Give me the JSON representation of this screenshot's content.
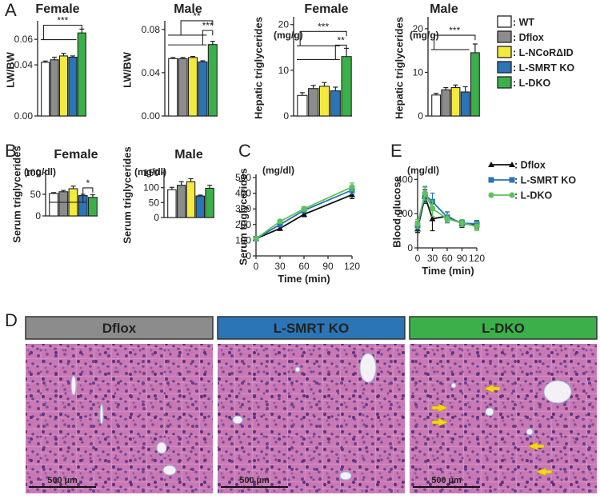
{
  "panel_labels": [
    "A",
    "B",
    "C",
    "D",
    "E"
  ],
  "legend_bars": [
    {
      "label": ": WT",
      "color": "#ffffff"
    },
    {
      "label": ": Dflox",
      "color": "#8c8c8c"
    },
    {
      "label": ": L-NCoRΔID",
      "color": "#f2ea3f"
    },
    {
      "label": ": L-SMRT KO",
      "color": "#2b74b6"
    },
    {
      "label": ": L-DKO",
      "color": "#3bb04a"
    }
  ],
  "chart_data": [
    {
      "type": "bar",
      "title": "Female",
      "y_label": "LW/BW",
      "values": [
        0.042,
        0.044,
        0.047,
        0.046,
        0.065
      ],
      "errors": [
        0.001,
        0.002,
        0.002,
        0.001,
        0.003
      ],
      "ylim": [
        0,
        0.072
      ],
      "yticks": [
        {
          "value": 0,
          "label": "0.00"
        },
        0.04,
        0.06
      ],
      "annotations": [
        "***"
      ]
    },
    {
      "type": "bar",
      "title": "Male",
      "y_label": "LW/BW",
      "values": [
        0.053,
        0.053,
        0.054,
        0.05,
        0.066
      ],
      "errors": [
        0.001,
        0.001,
        0.001,
        0.001,
        0.003
      ],
      "ylim": [
        0,
        0.085
      ],
      "yticks": [
        {
          "value": 0,
          "label": "0.00"
        },
        0.04,
        0.08
      ],
      "annotations": [
        "**",
        "***"
      ]
    },
    {
      "type": "bar",
      "title": "Female",
      "y_label": "Hepatic triglycerides",
      "unit": "(mg/g)",
      "values": [
        4.5,
        6,
        6.5,
        5.5,
        13
      ],
      "errors": [
        0.6,
        0.7,
        0.8,
        0.8,
        1.8
      ],
      "ylim": [
        0,
        21
      ],
      "yticks": [
        0,
        10,
        20
      ],
      "annotations": [
        "***",
        "**"
      ]
    },
    {
      "type": "bar",
      "title": "Male",
      "y_label": "Hepatic triglycerides",
      "unit": "(mg/g)",
      "values": [
        4.8,
        6,
        6.5,
        5.5,
        14.5
      ],
      "errors": [
        0.4,
        0.5,
        0.6,
        1.2,
        2
      ],
      "ylim": [
        0,
        22
      ],
      "yticks": [
        0,
        10,
        20
      ],
      "annotations": [
        "***"
      ]
    },
    {
      "type": "bar",
      "title": "Female",
      "y_label": "Serum triglycerides",
      "unit": "(mg/dl)",
      "values": [
        52,
        56,
        63,
        47,
        43
      ],
      "errors": [
        2,
        3,
        6,
        3,
        6
      ],
      "ylim": [
        0,
        100
      ],
      "yticks": [
        0,
        50,
        100
      ],
      "annotations": [
        "*"
      ]
    },
    {
      "type": "bar",
      "title": "Male",
      "y_label": "Serum triglycerides",
      "unit": "(mg/dl)",
      "values": [
        93,
        108,
        120,
        72,
        98
      ],
      "errors": [
        8,
        12,
        10,
        3,
        10
      ],
      "ylim": [
        0,
        150
      ],
      "yticks": [
        0,
        50,
        100,
        150
      ],
      "annotations": []
    },
    {
      "type": "line",
      "y_label": "Serum triglycerides",
      "unit": "(mg/dl)",
      "x_label": "Time (min)",
      "x": [
        0,
        30,
        60,
        120
      ],
      "xlim": [
        0,
        120
      ],
      "xticks": [
        0,
        30,
        60,
        90,
        120
      ],
      "ylim": [
        0,
        500
      ],
      "yticks": [
        0,
        100,
        200,
        300,
        400,
        500
      ],
      "series": [
        {
          "color": "#111111",
          "marker": "triangle",
          "values": [
            110,
            175,
            265,
            390
          ],
          "errors": [
            5,
            12,
            15,
            25
          ]
        },
        {
          "color": "#2b74b6",
          "marker": "square",
          "values": [
            110,
            200,
            290,
            420
          ],
          "errors": [
            5,
            10,
            15,
            25
          ]
        },
        {
          "color": "#5cc35a",
          "marker": "circle",
          "values": [
            110,
            220,
            300,
            440
          ],
          "errors": [
            5,
            12,
            15,
            25
          ]
        }
      ]
    },
    {
      "type": "line",
      "y_label": "Blood  glucose",
      "unit": "(mg/dl)",
      "x_label": "Time (min)",
      "x": [
        0,
        15,
        30,
        60,
        90,
        120
      ],
      "xlim": [
        0,
        120
      ],
      "xticks": [
        0,
        30,
        60,
        90,
        120
      ],
      "ylim": [
        0,
        420
      ],
      "yticks": [
        0,
        200,
        400
      ],
      "series": [
        {
          "name": ": Dflox",
          "color": "#111111",
          "marker": "triangle",
          "values": [
            110,
            300,
            170,
            185,
            140,
            135
          ],
          "errors": [
            20,
            40,
            70,
            25,
            20,
            25
          ]
        },
        {
          "name": ": L-SMRT KO",
          "color": "#2b74b6",
          "marker": "square",
          "values": [
            130,
            310,
            270,
            180,
            145,
            140
          ],
          "errors": [
            25,
            45,
            50,
            30,
            20,
            20
          ]
        },
        {
          "name": ": L-DKO",
          "color": "#5cc35a",
          "marker": "circle",
          "values": [
            140,
            320,
            230,
            170,
            145,
            125
          ],
          "errors": [
            25,
            40,
            45,
            25,
            20,
            25
          ]
        }
      ]
    }
  ],
  "histology": {
    "groups": [
      {
        "title": "Dflox",
        "color": "#8c8c8c",
        "text_color": "#333333",
        "scale_bar": "500 µm"
      },
      {
        "title": "L-SMRT KO",
        "color": "#2b74b6",
        "text_color": "#ffffff",
        "scale_bar": "500 µm"
      },
      {
        "title": "L-DKO",
        "color": "#3bb04a",
        "text_color": "#ffffff",
        "scale_bar": "500 µm"
      }
    ]
  }
}
